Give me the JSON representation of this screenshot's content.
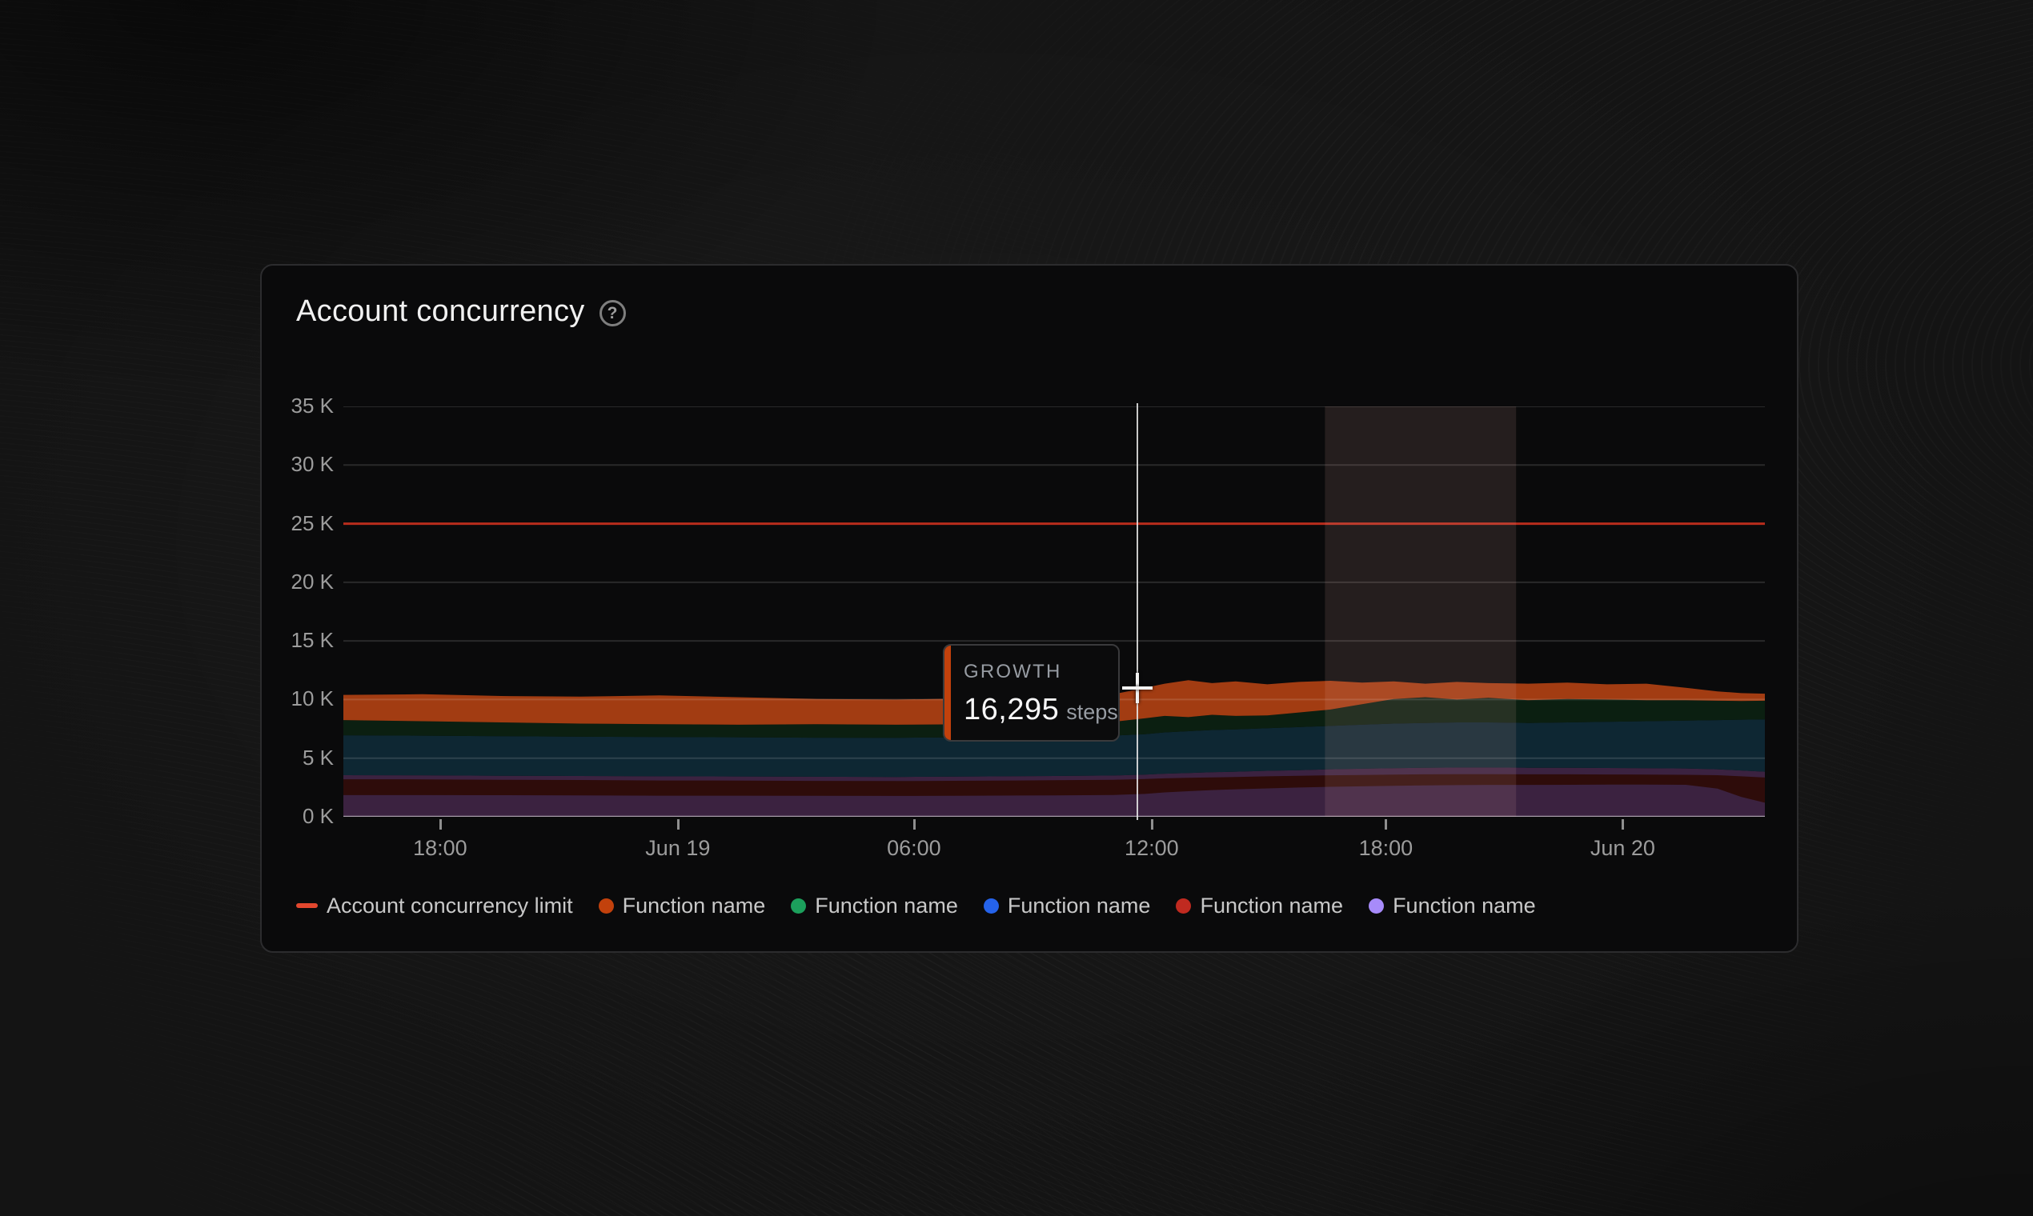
{
  "page": {
    "background": "#141414"
  },
  "card": {
    "title": "Account concurrency",
    "help_glyph": "?"
  },
  "tooltip": {
    "label": "GROWTH",
    "value": "16,295",
    "unit": "steps",
    "accent_color": "#C2410C"
  },
  "legend": {
    "items": [
      {
        "type": "dash",
        "color": "#E2472E",
        "label": "Account concurrency limit"
      },
      {
        "type": "dot",
        "color": "#C2410C",
        "label": "Function name"
      },
      {
        "type": "dot",
        "color": "#1CA05C",
        "label": "Function name"
      },
      {
        "type": "dot",
        "color": "#2563EB",
        "label": "Function name"
      },
      {
        "type": "dot",
        "color": "#C02A20",
        "label": "Function name"
      },
      {
        "type": "dot",
        "color": "#A78BFA",
        "label": "Function name"
      }
    ]
  },
  "chart_data": {
    "type": "area",
    "stacked": true,
    "title": "Account concurrency",
    "value_unit": "steps",
    "unit_scale": 1000,
    "ylim": [
      0,
      35
    ],
    "t_range": [
      0,
      36
    ],
    "grid_color": "rgba(255,255,255,0.13)",
    "axis_color": "rgba(255,255,255,0.55)",
    "y_ticks": [
      {
        "value": 35,
        "label": "35 K"
      },
      {
        "value": 30,
        "label": "30 K"
      },
      {
        "value": 25,
        "label": "25 K"
      },
      {
        "value": 20,
        "label": "20 K"
      },
      {
        "value": 15,
        "label": "15 K"
      },
      {
        "value": 10,
        "label": "10 K"
      },
      {
        "value": 5,
        "label": "5 K"
      },
      {
        "value": 0,
        "label": "0 K"
      }
    ],
    "x_ticks": [
      {
        "t": 2.45,
        "label": "18:00"
      },
      {
        "t": 8.47,
        "label": "Jun 19"
      },
      {
        "t": 14.45,
        "label": "06:00"
      },
      {
        "t": 20.47,
        "label": "12:00"
      },
      {
        "t": 26.4,
        "label": "18:00"
      },
      {
        "t": 32.4,
        "label": "Jun 20"
      }
    ],
    "limit": {
      "label": "Account concurrency limit",
      "value": 25,
      "color": "#B82C1C"
    },
    "highlight_band": {
      "t_start": 24.86,
      "t_end": 29.7,
      "fill": "rgba(235,185,175,0.12)"
    },
    "crosshair": {
      "t": 20.1,
      "value": 11.0
    },
    "t_hours": [
      0,
      2,
      4,
      6,
      8,
      10,
      12,
      14,
      16,
      18,
      19.5,
      20.3,
      20.8,
      21.4,
      22,
      22.6,
      23.4,
      24.2,
      25,
      25.8,
      26.6,
      27.4,
      28.2,
      29,
      30,
      31,
      32,
      33,
      34,
      34.8,
      35.4,
      36
    ],
    "series": [
      {
        "key": "purple",
        "name": "Function name",
        "legend_color": "#A78BFA",
        "fill": "#3B2240",
        "lower": null,
        "upper": [
          3.55,
          3.54,
          3.5,
          3.48,
          3.45,
          3.44,
          3.42,
          3.4,
          3.44,
          3.48,
          3.52,
          3.6,
          3.68,
          3.74,
          3.8,
          3.85,
          3.92,
          3.98,
          4.05,
          4.1,
          4.15,
          4.18,
          4.2,
          4.2,
          4.18,
          4.18,
          4.16,
          4.15,
          4.12,
          4.05,
          3.95,
          3.85
        ]
      },
      {
        "key": "maroon",
        "name": "Function name",
        "legend_color": "#C02A20",
        "fill": "#2E0C0A",
        "lower": [
          1.85,
          1.85,
          1.84,
          1.83,
          1.8,
          1.8,
          1.79,
          1.78,
          1.8,
          1.83,
          1.86,
          1.95,
          2.08,
          2.18,
          2.28,
          2.35,
          2.42,
          2.5,
          2.56,
          2.6,
          2.64,
          2.68,
          2.7,
          2.72,
          2.72,
          2.73,
          2.74,
          2.74,
          2.73,
          2.4,
          1.7,
          1.2
        ],
        "upper": [
          3.2,
          3.19,
          3.16,
          3.14,
          3.1,
          3.09,
          3.06,
          3.05,
          3.08,
          3.12,
          3.16,
          3.22,
          3.28,
          3.32,
          3.36,
          3.4,
          3.45,
          3.5,
          3.54,
          3.57,
          3.6,
          3.62,
          3.63,
          3.63,
          3.62,
          3.62,
          3.61,
          3.6,
          3.58,
          3.55,
          3.45,
          3.35
        ]
      },
      {
        "key": "blue",
        "name": "Function name",
        "legend_color": "#2563EB",
        "fill": "#0E2733",
        "lower": [
          3.55,
          3.54,
          3.5,
          3.48,
          3.45,
          3.44,
          3.42,
          3.4,
          3.44,
          3.48,
          3.52,
          3.6,
          3.68,
          3.74,
          3.8,
          3.85,
          3.92,
          3.98,
          4.05,
          4.1,
          4.15,
          4.18,
          4.2,
          4.2,
          4.18,
          4.18,
          4.16,
          4.15,
          4.12,
          4.05,
          3.95,
          3.85
        ],
        "upper": [
          6.95,
          6.92,
          6.88,
          6.83,
          6.8,
          6.78,
          6.75,
          6.74,
          6.78,
          6.85,
          6.92,
          7.05,
          7.2,
          7.3,
          7.4,
          7.45,
          7.55,
          7.65,
          7.75,
          7.85,
          7.95,
          8.0,
          8.05,
          8.05,
          8.0,
          8.05,
          8.1,
          8.15,
          8.2,
          8.25,
          8.28,
          8.3
        ]
      },
      {
        "key": "green",
        "name": "Function name",
        "legend_color": "#1CA05C",
        "fill": "#0B1F11",
        "lower": [
          6.95,
          6.92,
          6.88,
          6.83,
          6.8,
          6.78,
          6.75,
          6.74,
          6.78,
          6.85,
          6.92,
          7.05,
          7.2,
          7.3,
          7.4,
          7.45,
          7.55,
          7.65,
          7.75,
          7.85,
          7.95,
          8.0,
          8.05,
          8.05,
          8.0,
          8.05,
          8.1,
          8.15,
          8.2,
          8.25,
          8.28,
          8.3
        ],
        "upper": [
          8.25,
          8.15,
          8.05,
          7.95,
          7.9,
          7.85,
          7.9,
          7.85,
          7.9,
          8.0,
          8.1,
          8.4,
          8.6,
          8.5,
          8.7,
          8.6,
          8.65,
          8.9,
          9.15,
          9.6,
          10.05,
          10.2,
          10.0,
          10.15,
          9.95,
          10.05,
          10.0,
          9.95,
          9.95,
          9.9,
          9.88,
          9.9
        ]
      },
      {
        "key": "orange",
        "name": "Function name",
        "legend_color": "#C2410C",
        "fill": "#A23C12",
        "lower": [
          8.25,
          8.15,
          8.05,
          7.95,
          7.9,
          7.85,
          7.9,
          7.85,
          7.9,
          8.0,
          8.1,
          8.4,
          8.6,
          8.5,
          8.7,
          8.6,
          8.65,
          8.9,
          9.15,
          9.6,
          10.05,
          10.2,
          10.0,
          10.15,
          9.95,
          10.05,
          10.0,
          9.95,
          9.95,
          9.9,
          9.88,
          9.9
        ],
        "upper": [
          10.4,
          10.45,
          10.3,
          10.25,
          10.35,
          10.2,
          10.05,
          10.0,
          10.1,
          10.2,
          10.45,
          11.0,
          11.35,
          11.65,
          11.4,
          11.55,
          11.3,
          11.5,
          11.6,
          11.45,
          11.55,
          11.35,
          11.5,
          11.4,
          11.35,
          11.45,
          11.3,
          11.35,
          11.0,
          10.7,
          10.55,
          10.5
        ]
      }
    ]
  }
}
